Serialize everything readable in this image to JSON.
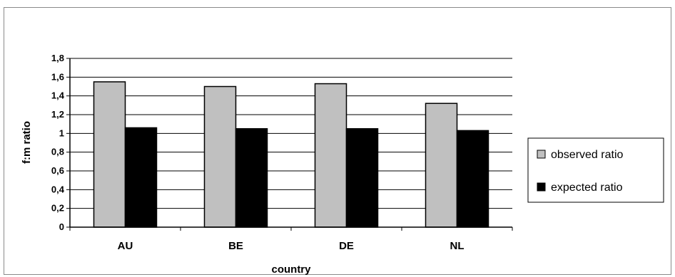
{
  "chart_data": {
    "type": "bar",
    "title": "",
    "xlabel": "country",
    "ylabel": "f:m ratio",
    "categories": [
      "AU",
      "BE",
      "DE",
      "NL"
    ],
    "series": [
      {
        "name": "observed ratio",
        "color": "#c0c0c0",
        "values": [
          1.55,
          1.5,
          1.53,
          1.32
        ]
      },
      {
        "name": "expected ratio",
        "color": "#000000",
        "values": [
          1.06,
          1.05,
          1.05,
          1.03
        ]
      }
    ],
    "ylim": [
      0,
      1.8
    ],
    "yticks": [
      0,
      0.2,
      0.4,
      0.6,
      0.8,
      1,
      1.2,
      1.4,
      1.6,
      1.8
    ],
    "ytick_labels": [
      "0",
      "0,2",
      "0,4",
      "0,6",
      "0,8",
      "1",
      "1,2",
      "1,4",
      "1,6",
      "1,8"
    ],
    "grid": true,
    "legend_position": "right"
  }
}
